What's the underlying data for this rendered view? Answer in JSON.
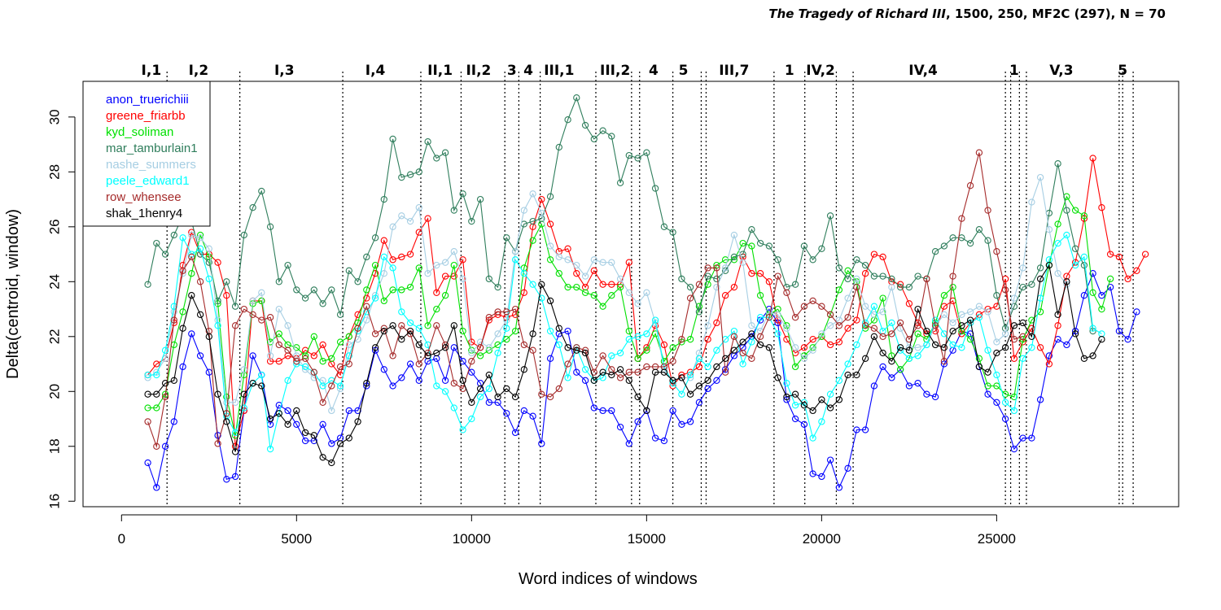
{
  "title": {
    "italic": "The Tragedy of Richard III",
    "rest": ", 1500, 250, MF2C (297), N = 70"
  },
  "chart_data": {
    "type": "line",
    "xlabel": "Word indices of windows",
    "ylabel": "Delta(centroid, window)",
    "xlim": [
      -1100,
      30200
    ],
    "ylim": [
      15.8,
      31.3
    ],
    "xticks": [
      0,
      5000,
      10000,
      15000,
      20000,
      25000
    ],
    "yticks": [
      16,
      18,
      20,
      22,
      24,
      26,
      28,
      30
    ],
    "grid": false,
    "legend_position": "top-left",
    "scene_boundaries": [
      1300,
      3380,
      6320,
      8550,
      9700,
      10950,
      11350,
      11960,
      13550,
      14570,
      14800,
      15750,
      16560,
      16700,
      18640,
      19520,
      20420,
      20900,
      25250,
      25400,
      25650,
      25850,
      28500,
      28600,
      28900
    ],
    "scene_labels": [
      {
        "label": "I,1",
        "x": 850
      },
      {
        "label": "I,2",
        "x": 2200
      },
      {
        "label": "I,3",
        "x": 4650
      },
      {
        "label": "I,4",
        "x": 7250
      },
      {
        "label": "II,1",
        "x": 9100
      },
      {
        "label": "II,2",
        "x": 10200
      },
      {
        "label": "3",
        "x": 11150
      },
      {
        "label": "4",
        "x": 11620
      },
      {
        "label": "III,1",
        "x": 12500
      },
      {
        "label": "III,2",
        "x": 14100
      },
      {
        "label": "4",
        "x": 15200
      },
      {
        "label": "5",
        "x": 16050
      },
      {
        "label": "III,7",
        "x": 17500
      },
      {
        "label": "1",
        "x": 19080
      },
      {
        "label": "IV,2",
        "x": 19970
      },
      {
        "label": "IV,4",
        "x": 22900
      },
      {
        "label": "1",
        "x": 25500
      },
      {
        "label": "V,3",
        "x": 26850
      },
      {
        "label": "5",
        "x": 28600
      }
    ],
    "series": [
      {
        "name": "anon_truerichiii",
        "color": "#0000ff",
        "y": [
          17.4,
          16.5,
          18,
          18.9,
          20.9,
          22.1,
          21.3,
          20.7,
          18.4,
          16.8,
          16.9,
          19.3,
          21.3,
          20.6,
          18.8,
          19.5,
          19.3,
          18.8,
          18.2,
          18.2,
          18.8,
          18.1,
          18.3,
          19.3,
          19.3,
          20.2,
          21.5,
          20.8,
          20.2,
          20.5,
          21,
          20.4,
          21.1,
          21.2,
          20.4,
          21.6,
          21.1,
          20.7,
          20.3,
          19.6,
          19.6,
          19.2,
          18.5,
          19.3,
          19.1,
          18.1,
          21.2,
          22.1,
          22.2,
          20.7,
          20.4,
          19.4,
          19.3,
          19.3,
          18.7,
          18.1,
          18.9,
          19.3,
          18.3,
          18.2,
          19.3,
          18.8,
          18.9,
          19.6,
          20.1,
          20.4,
          20.8,
          21.3,
          21.6,
          22,
          22.6,
          23,
          22.5,
          19.7,
          19,
          18.8,
          17,
          16.9,
          17.5,
          16.5,
          17.2,
          18.6,
          18.6,
          20.2,
          20.9,
          20.5,
          20.8,
          20.2,
          20.3,
          19.9,
          19.8,
          21,
          21.5,
          22.2,
          22.1,
          20.9,
          19.9,
          19.6,
          19,
          17.9,
          18.3,
          18.3,
          19.7,
          21.3,
          21.9,
          21.7,
          22.2,
          23.5,
          24.3,
          23.5,
          23.8,
          22.2,
          21.9,
          22.9
        ]
      },
      {
        "name": "greene_friarbb",
        "color": "#ff0000",
        "y": [
          20.6,
          21,
          21.2,
          22.5,
          24.6,
          25.8,
          25,
          25,
          24.7,
          23.5,
          18,
          19.3,
          23.3,
          23.3,
          21.1,
          21.1,
          21.3,
          21.2,
          21.5,
          21.3,
          21.7,
          21,
          20.6,
          22,
          22.8,
          23.4,
          24.3,
          25.5,
          24.8,
          24.9,
          25,
          25.8,
          26.3,
          23.6,
          24.2,
          24.2,
          24.8,
          21.8,
          21.6,
          22.6,
          22.8,
          22.7,
          22.8,
          23.6,
          26,
          27,
          26.1,
          25.1,
          25.2,
          24.3,
          23.8,
          24.4,
          23.9,
          23.9,
          23.9,
          24.7,
          21.2,
          21.6,
          22.4,
          21.7,
          20.2,
          20.6,
          20.7,
          20.9,
          21.9,
          22.5,
          23.5,
          23.8,
          24.9,
          24.3,
          24.3,
          24,
          22.6,
          21.9,
          21.4,
          21.6,
          21.9,
          22,
          21.7,
          21.8,
          22.3,
          22.6,
          24.3,
          25,
          24.9,
          24,
          23.9,
          23.2,
          22.5,
          22.1,
          22.2,
          23.1,
          23.3,
          22.1,
          22.5,
          22.8,
          23,
          23.1,
          24.1,
          21.2,
          21.8,
          22.3,
          21.6,
          21,
          22.4,
          24.2,
          24.7,
          26.3,
          28.5,
          26.7,
          25,
          24.9,
          24.1,
          24.4,
          25
        ]
      },
      {
        "name": "kyd_soliman",
        "color": "#00e000",
        "y": [
          19.4,
          19.4,
          19.9,
          21.7,
          22.9,
          24.3,
          25.7,
          24.9,
          23.2,
          19.8,
          18.4,
          20.6,
          23.2,
          23.3,
          21.8,
          22.1,
          21.7,
          21.6,
          21.3,
          22,
          21.1,
          21.2,
          21.8,
          22,
          22.5,
          23.7,
          24.6,
          23.3,
          23.7,
          23.7,
          23.8,
          24.5,
          22.4,
          23,
          23.5,
          24.6,
          22.2,
          21.5,
          21.3,
          21.5,
          21.7,
          21.9,
          22.2,
          24.5,
          25.5,
          26.1,
          24.8,
          24.3,
          23.8,
          23.8,
          23.6,
          23.5,
          23.1,
          23.5,
          23.8,
          22.2,
          21.2,
          21.5,
          22.1,
          21.1,
          21.6,
          21.8,
          21.9,
          23.1,
          23.9,
          24.6,
          24.8,
          24.8,
          25.4,
          25.3,
          23.5,
          22.8,
          23,
          22.4,
          20.9,
          21.3,
          21.6,
          22,
          22.8,
          23.7,
          24.4,
          24,
          22.3,
          22.6,
          23.4,
          21.3,
          20.8,
          21.2,
          22.1,
          21.9,
          22.5,
          23.5,
          23.8,
          22.2,
          21.9,
          21.2,
          20.2,
          20.2,
          19.9,
          19.8,
          21.9,
          22.6,
          22.9,
          24.6,
          26.1,
          27.1,
          26.6,
          26.4,
          23.6,
          23,
          24.1
        ]
      },
      {
        "name": "mar_tamburlain1",
        "color": "#2e7d5b",
        "y": [
          23.9,
          25.4,
          25,
          25.7,
          26.4,
          26.2,
          25,
          24.7,
          23.3,
          24,
          23.1,
          25.7,
          26.7,
          27.3,
          26,
          24,
          24.6,
          23.7,
          23.4,
          23.7,
          23.2,
          23.7,
          22.8,
          24.4,
          24,
          24.9,
          25.6,
          27,
          29.2,
          27.8,
          27.9,
          28,
          29.1,
          28.5,
          28.7,
          26.6,
          27.2,
          26.2,
          27,
          24.1,
          23.8,
          25.6,
          25.1,
          26.1,
          26.2,
          26.3,
          27.1,
          28.9,
          29.9,
          30.7,
          29.7,
          29.2,
          29.5,
          29.3,
          27.6,
          28.6,
          28.5,
          28.7,
          27.4,
          26,
          25.8,
          24.1,
          23.8,
          22.9,
          24.2,
          24.1,
          24.4,
          24.9,
          25,
          25.9,
          25.4,
          25.3,
          24.8,
          23.8,
          23.9,
          25.3,
          24.8,
          25.2,
          26.4,
          24.5,
          24.1,
          24.8,
          24.6,
          24.2,
          24.2,
          24.1,
          23.8,
          23.8,
          24.2,
          24.1,
          25.1,
          25.3,
          25.6,
          25.6,
          25.4,
          25.9,
          25.5,
          23.5,
          22.3,
          23.1,
          23.8,
          23.9,
          24.5,
          26.5,
          28.3,
          26.6,
          25.2,
          24.6,
          22.2
        ]
      },
      {
        "name": "nashe_summers",
        "color": "#a6cee3",
        "y": [
          20.5,
          20.7,
          21.2,
          22.9,
          24.3,
          25.7,
          25.6,
          25.2,
          22.6,
          19.6,
          19.6,
          20.8,
          23.3,
          23.6,
          21.3,
          23,
          22.4,
          21.3,
          20.8,
          20.5,
          20.4,
          19.3,
          20.1,
          21.7,
          21.9,
          22.6,
          23.5,
          24.3,
          26,
          26.4,
          26.2,
          26.7,
          24.3,
          24.6,
          24.7,
          25.1,
          24.1,
          21.4,
          21.8,
          21.6,
          22.1,
          22.6,
          25.1,
          26.6,
          27.2,
          26.5,
          25.3,
          24.9,
          24.8,
          24.6,
          24.2,
          24.8,
          24.7,
          24.7,
          24.1,
          23.6,
          23.2,
          23.6,
          22.5,
          20.8,
          20.4,
          20.5,
          20.5,
          21.4,
          22.4,
          23.8,
          24.5,
          25.7,
          24.7,
          22.4,
          22.2,
          22.9,
          22.8,
          22.3,
          21.6,
          21.2,
          21.5,
          22.1,
          22.4,
          22.6,
          23.4,
          24.1,
          23.1,
          22.8,
          22.9,
          23.8,
          22.3,
          21.6,
          21.6,
          21.7,
          22.4,
          22.8,
          22.5,
          22.8,
          22.9,
          23.1,
          22.9,
          21.8,
          22.1,
          23.4,
          24.5,
          26.9,
          27.8,
          25.9,
          24.3,
          23.9
        ]
      },
      {
        "name": "peele_edward1",
        "color": "#00ffff",
        "y": [
          20.6,
          20.6,
          21.5,
          23.1,
          25.6,
          25,
          25.2,
          24.1,
          22.4,
          19.1,
          18.5,
          19.4,
          20.3,
          20.6,
          17.9,
          19.2,
          20.4,
          21,
          20.9,
          20.7,
          20.2,
          20.4,
          20.2,
          21.3,
          22.2,
          22.9,
          23.4,
          24.9,
          24.5,
          22.9,
          22.5,
          22.3,
          21.7,
          20.2,
          20,
          19.4,
          18.6,
          19,
          19.8,
          20.1,
          21.4,
          22.3,
          24.8,
          24.3,
          23.9,
          23.4,
          22.2,
          21.7,
          20.5,
          21.6,
          20.8,
          20.4,
          20.5,
          21.3,
          21.4,
          21.9,
          22,
          22.1,
          22.6,
          20.9,
          20.3,
          19.9,
          20.6,
          21.2,
          20.9,
          21.5,
          21.9,
          22.2,
          21,
          21.8,
          22.7,
          22.7,
          22.1,
          20.3,
          19.5,
          19.6,
          18.3,
          18.9,
          19.9,
          20.4,
          21,
          21.7,
          22.5,
          23.1,
          22.2,
          22.5,
          21.5,
          21.2,
          21.3,
          21.7,
          22.6,
          22.1,
          21.7,
          21.6,
          22.5,
          22.7,
          21.5,
          20.6,
          19.6,
          19.3,
          21.2,
          21.6,
          23.4,
          24.8,
          25.4,
          25.7,
          24.6,
          24.9,
          22.3,
          22.1
        ]
      },
      {
        "name": "row_whensee",
        "color": "#a52a2a",
        "y": [
          18.9,
          18,
          19.8,
          22.6,
          24.4,
          24.9,
          24,
          22.2,
          18.1,
          19.2,
          22.4,
          23,
          22.8,
          22.6,
          22.7,
          21.7,
          21.5,
          21.1,
          21.2,
          20.7,
          19.6,
          20.2,
          20.9,
          21,
          22.3,
          23.1,
          22.1,
          22.3,
          21.3,
          22.4,
          22.1,
          21,
          21.4,
          22.4,
          21.7,
          20.3,
          20.1,
          21.1,
          21.6,
          22.7,
          22.9,
          22.9,
          23,
          21.7,
          21.5,
          19.9,
          19.8,
          20.1,
          21,
          21.6,
          21.5,
          20.7,
          21.3,
          20.8,
          20.5,
          20.7,
          20.7,
          20.9,
          20.9,
          20.9,
          21.1,
          21.9,
          23.4,
          23.9,
          24.5,
          24.5,
          20.7,
          22,
          21.4,
          21.2,
          22,
          22.7,
          24.2,
          23.6,
          22.7,
          23.1,
          23.3,
          23.1,
          22.8,
          22.4,
          22.7,
          23.8,
          22.4,
          22.3,
          22,
          22.1,
          22.5,
          21.9,
          22.4,
          24.1,
          22.4,
          21.1,
          24.2,
          26.3,
          27.5,
          28.7,
          26.6,
          25.1,
          23.7,
          21.9,
          22
        ]
      },
      {
        "name": "shak_1henry4",
        "color": "#000000",
        "y": [
          19.9,
          19.9,
          20.3,
          20.4,
          22.3,
          23.5,
          22.8,
          22,
          19.9,
          18.9,
          17.8,
          19.9,
          20.3,
          20.2,
          19,
          19.2,
          18.8,
          19.3,
          18.5,
          18.4,
          17.6,
          17.4,
          18.1,
          18.3,
          18.9,
          20.3,
          21.6,
          22.2,
          22.4,
          21.9,
          22.2,
          21.7,
          21.3,
          21.4,
          21.6,
          22.4,
          20.4,
          19.6,
          20.1,
          20.6,
          19.8,
          20.1,
          19.8,
          20.8,
          22.1,
          23.9,
          23.3,
          22.3,
          21.6,
          21.5,
          21.4,
          20.4,
          20.7,
          20.6,
          20.8,
          20.4,
          19.8,
          19.3,
          20.7,
          20.7,
          20.4,
          20.5,
          19.9,
          20.2,
          20.4,
          20.9,
          21.2,
          21.5,
          21.8,
          22.1,
          21.7,
          21.6,
          20.5,
          19.8,
          19.9,
          19.5,
          19.3,
          19.7,
          19.4,
          19.7,
          20.6,
          20.6,
          21.2,
          22,
          21.4,
          21.1,
          21.6,
          21.5,
          23,
          22.2,
          21.7,
          21.6,
          22.2,
          22.4,
          22.6,
          20.9,
          20.7,
          21.4,
          21.6,
          22.4,
          22.5,
          22,
          24.1,
          24.6,
          22.8,
          24,
          22.1,
          21.2,
          21.3,
          21.9
        ]
      }
    ]
  }
}
